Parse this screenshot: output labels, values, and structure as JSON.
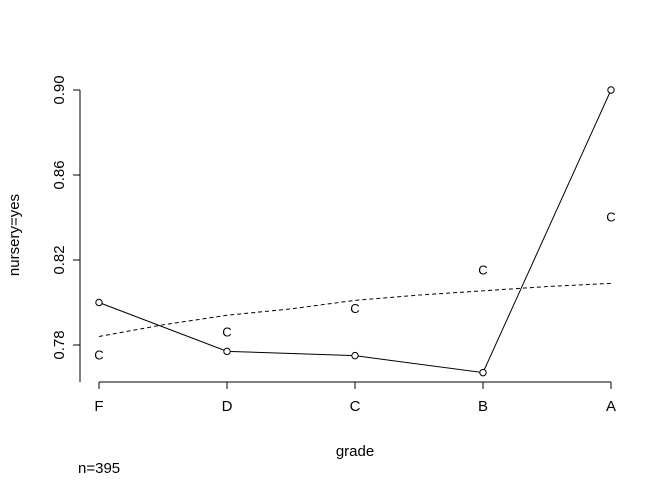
{
  "chart_data": {
    "type": "line",
    "title": "",
    "xlabel": "grade",
    "ylabel": "nursery=yes",
    "categories": [
      "F",
      "D",
      "C",
      "B",
      "A"
    ],
    "yticks": [
      "0.78",
      "0.82",
      "0.86",
      "0.90"
    ],
    "ylim": [
      0.7625,
      0.9
    ],
    "footnote": "n=395",
    "grid": false,
    "series": [
      {
        "style": "solid-with-circles",
        "values": [
          0.8,
          0.777,
          0.775,
          0.767,
          0.9
        ]
      },
      {
        "style": "dashed-smooth",
        "x": [
          0,
          0.5,
          1,
          1.5,
          2,
          2.5,
          3,
          3.5,
          4
        ],
        "values": [
          0.784,
          0.7895,
          0.794,
          0.797,
          0.801,
          0.8035,
          0.8055,
          0.8075,
          0.809
        ]
      },
      {
        "style": "letter-marker",
        "marker": "C",
        "values": [
          0.775,
          0.786,
          0.797,
          0.815,
          0.84
        ]
      }
    ]
  }
}
